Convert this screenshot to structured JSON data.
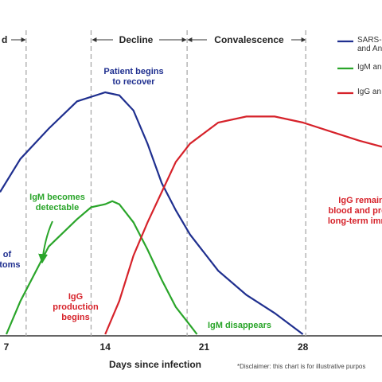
{
  "chart_data": {
    "type": "line",
    "x_label": "Days since infection",
    "disclaimer": "*Disclaimer: this chart is for illustrative purpos",
    "phases": [
      "d",
      "Decline",
      "Convalescence"
    ],
    "phase_lines": [
      8.4,
      13,
      19.8,
      28.2
    ],
    "xlim": [
      6.55,
      33.6
    ],
    "xticks": [
      7,
      14,
      21,
      28
    ],
    "ylim": [
      0,
      100
    ],
    "series": [
      {
        "name": "SARS-C and An",
        "color": "#1f2f8f",
        "x": [
          6.55,
          8,
          10,
          12,
          14,
          15,
          16,
          17,
          18,
          19,
          20,
          22,
          24,
          26,
          28
        ],
        "values": [
          47,
          58,
          68,
          77,
          80,
          79,
          74,
          63,
          50,
          41,
          33,
          21,
          13,
          7,
          0
        ]
      },
      {
        "name": "IgM an",
        "color": "#2aa52a",
        "x": [
          7,
          8,
          10,
          12,
          13,
          14,
          14.5,
          15,
          16,
          17,
          18,
          19,
          20,
          20.5
        ],
        "values": [
          0,
          11,
          29,
          38,
          42,
          43,
          44,
          43,
          37,
          28,
          18,
          9,
          3,
          0
        ]
      },
      {
        "name": "IgG an",
        "color": "#d6222a",
        "x": [
          14,
          15,
          16,
          17,
          18,
          19,
          20,
          22,
          24,
          26,
          28,
          30,
          32,
          33.6
        ],
        "values": [
          0,
          11,
          26,
          37,
          47,
          57,
          63,
          70,
          72,
          72,
          70,
          67,
          64,
          62
        ]
      }
    ],
    "annotations": [
      "Patient begins\nto recover",
      "IgM becomes\ndetectable",
      "of\nptoms",
      "IgG\nproduction\nbegins",
      "IgM disappears",
      "IgG remains i\nblood and provi\nlong-term immu"
    ]
  }
}
